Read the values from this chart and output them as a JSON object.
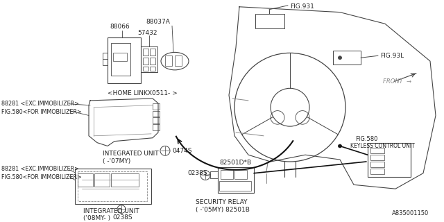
{
  "bg_color": "#ffffff",
  "line_color": "#444444",
  "text_color": "#222222",
  "light_color": "#888888",
  "diagram_id": "A835001150",
  "part_no_88066": "88066",
  "part_no_88037A": "88037A",
  "part_no_57432": "57432",
  "part_no_88281a": "88281 <EXC.IMMOBILIZER>",
  "part_no_88281a2": "FIG.580<FOR IMMOBILIZER>",
  "part_no_88281b": "88281 <EXC.IMMOBILIZER>",
  "part_no_88281b2": "FIG.580<FOR IMMOBILIZER>",
  "part_no_0474S": "0474S",
  "part_no_0238S_b": "0238S",
  "part_no_0238S_m": "0238S",
  "part_no_82501D": "82501D*B",
  "label_homelink": "<HOME LINKX0511- >",
  "label_int_top": "INTEGRATED UNIT",
  "label_int_top2": "( -'07MY)",
  "label_int_bot": "INTEGRATED UNIT",
  "label_int_bot2": "('08MY- )",
  "label_sec_relay": "SECURITY RELAY",
  "label_sec_relay2": "( -'05MY) 82501B",
  "label_keyless": "KEYLESS CONTROL UNIT",
  "label_front": "FRONT",
  "fig_931": "FIG.931",
  "fig_93L": "FIG.93L",
  "fig_580": "FIG.580"
}
